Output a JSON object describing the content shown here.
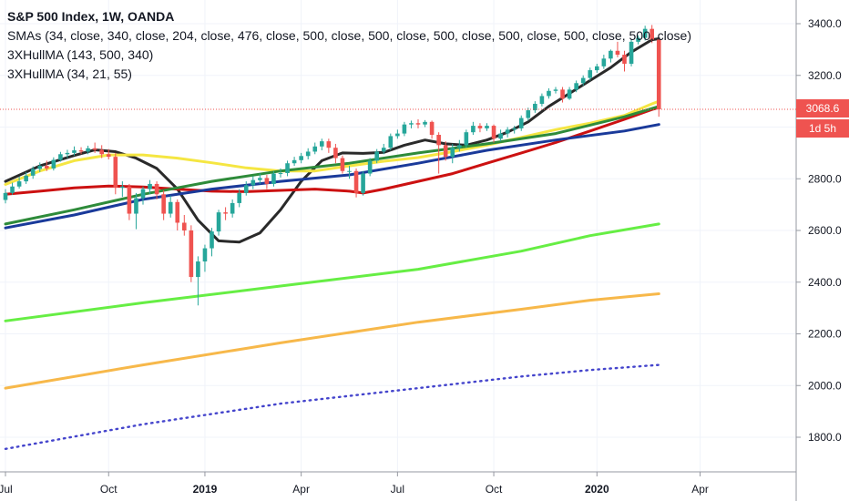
{
  "chart_data": {
    "type": "candlestick",
    "title": "S&P 500 Index, 1W, OANDA",
    "indicators": [
      "SMAs (34, close, 340, close, 204, close, 476, close, 500, close, 500, close, 500, close, 500, close, 500, close, 500, close)",
      "3XHullMA (143, 500, 340)",
      "3XHullMA (34, 21, 55)"
    ],
    "y_axis": {
      "side": "right",
      "ticks": [
        "3400.0",
        "3200.0",
        "3000.0",
        "2800.0",
        "2600.0",
        "2400.0",
        "2200.0",
        "2000.0",
        "1800.0"
      ],
      "ylim": [
        1740,
        3440
      ]
    },
    "x_axis": {
      "ticks": [
        "Jul",
        "Oct",
        "2019",
        "Apr",
        "Jul",
        "Oct",
        "2020",
        "Apr"
      ]
    },
    "grid": true,
    "last_price_label": "3068.6",
    "countdown_label": "1d 5h",
    "candles": [
      {
        "o": 2718,
        "c": 2745,
        "h": 2760,
        "l": 2705
      },
      {
        "o": 2745,
        "c": 2770,
        "h": 2785,
        "l": 2738
      },
      {
        "o": 2770,
        "c": 2790,
        "h": 2808,
        "l": 2762
      },
      {
        "o": 2790,
        "c": 2812,
        "h": 2826,
        "l": 2780
      },
      {
        "o": 2812,
        "c": 2838,
        "h": 2848,
        "l": 2800
      },
      {
        "o": 2838,
        "c": 2850,
        "h": 2863,
        "l": 2826
      },
      {
        "o": 2850,
        "c": 2840,
        "h": 2870,
        "l": 2830
      },
      {
        "o": 2840,
        "c": 2873,
        "h": 2883,
        "l": 2832
      },
      {
        "o": 2873,
        "c": 2895,
        "h": 2904,
        "l": 2866
      },
      {
        "o": 2895,
        "c": 2900,
        "h": 2912,
        "l": 2880
      },
      {
        "o": 2900,
        "c": 2910,
        "h": 2925,
        "l": 2890
      },
      {
        "o": 2910,
        "c": 2905,
        "h": 2922,
        "l": 2895
      },
      {
        "o": 2905,
        "c": 2918,
        "h": 2928,
        "l": 2895
      },
      {
        "o": 2918,
        "c": 2912,
        "h": 2940,
        "l": 2900
      },
      {
        "o": 2912,
        "c": 2895,
        "h": 2930,
        "l": 2880
      },
      {
        "o": 2895,
        "c": 2885,
        "h": 2915,
        "l": 2875
      },
      {
        "o": 2885,
        "c": 2765,
        "h": 2900,
        "l": 2740
      },
      {
        "o": 2765,
        "c": 2770,
        "h": 2790,
        "l": 2730
      },
      {
        "o": 2770,
        "c": 2665,
        "h": 2780,
        "l": 2640
      },
      {
        "o": 2665,
        "c": 2725,
        "h": 2745,
        "l": 2605
      },
      {
        "o": 2725,
        "c": 2760,
        "h": 2770,
        "l": 2700
      },
      {
        "o": 2760,
        "c": 2780,
        "h": 2795,
        "l": 2740
      },
      {
        "o": 2780,
        "c": 2740,
        "h": 2790,
        "l": 2720
      },
      {
        "o": 2740,
        "c": 2665,
        "h": 2755,
        "l": 2640
      },
      {
        "o": 2665,
        "c": 2710,
        "h": 2735,
        "l": 2650
      },
      {
        "o": 2710,
        "c": 2630,
        "h": 2720,
        "l": 2600
      },
      {
        "o": 2630,
        "c": 2600,
        "h": 2660,
        "l": 2580
      },
      {
        "o": 2600,
        "c": 2420,
        "h": 2620,
        "l": 2400
      },
      {
        "o": 2420,
        "c": 2480,
        "h": 2500,
        "l": 2310
      },
      {
        "o": 2480,
        "c": 2531,
        "h": 2545,
        "l": 2440
      },
      {
        "o": 2531,
        "c": 2596,
        "h": 2610,
        "l": 2500
      },
      {
        "o": 2596,
        "c": 2670,
        "h": 2680,
        "l": 2580
      },
      {
        "o": 2670,
        "c": 2665,
        "h": 2690,
        "l": 2640
      },
      {
        "o": 2665,
        "c": 2706,
        "h": 2720,
        "l": 2650
      },
      {
        "o": 2706,
        "c": 2745,
        "h": 2760,
        "l": 2690
      },
      {
        "o": 2745,
        "c": 2775,
        "h": 2790,
        "l": 2735
      },
      {
        "o": 2775,
        "c": 2795,
        "h": 2810,
        "l": 2760
      },
      {
        "o": 2795,
        "c": 2803,
        "h": 2820,
        "l": 2780
      },
      {
        "o": 2803,
        "c": 2780,
        "h": 2815,
        "l": 2760
      },
      {
        "o": 2780,
        "c": 2820,
        "h": 2830,
        "l": 2770
      },
      {
        "o": 2820,
        "c": 2822,
        "h": 2840,
        "l": 2805
      },
      {
        "o": 2822,
        "c": 2860,
        "h": 2870,
        "l": 2810
      },
      {
        "o": 2860,
        "c": 2872,
        "h": 2885,
        "l": 2850
      },
      {
        "o": 2872,
        "c": 2888,
        "h": 2900,
        "l": 2860
      },
      {
        "o": 2888,
        "c": 2905,
        "h": 2918,
        "l": 2875
      },
      {
        "o": 2905,
        "c": 2925,
        "h": 2940,
        "l": 2895
      },
      {
        "o": 2925,
        "c": 2945,
        "h": 2955,
        "l": 2910
      },
      {
        "o": 2945,
        "c": 2920,
        "h": 2955,
        "l": 2900
      },
      {
        "o": 2920,
        "c": 2880,
        "h": 2935,
        "l": 2860
      },
      {
        "o": 2880,
        "c": 2830,
        "h": 2890,
        "l": 2820
      },
      {
        "o": 2830,
        "c": 2830,
        "h": 2850,
        "l": 2800
      },
      {
        "o": 2830,
        "c": 2745,
        "h": 2840,
        "l": 2728
      },
      {
        "o": 2745,
        "c": 2820,
        "h": 2830,
        "l": 2735
      },
      {
        "o": 2820,
        "c": 2870,
        "h": 2880,
        "l": 2810
      },
      {
        "o": 2870,
        "c": 2905,
        "h": 2915,
        "l": 2860
      },
      {
        "o": 2905,
        "c": 2920,
        "h": 2935,
        "l": 2895
      },
      {
        "o": 2920,
        "c": 2965,
        "h": 2975,
        "l": 2910
      },
      {
        "o": 2965,
        "c": 2975,
        "h": 2990,
        "l": 2955
      },
      {
        "o": 2975,
        "c": 3010,
        "h": 3020,
        "l": 2965
      },
      {
        "o": 3010,
        "c": 3015,
        "h": 3025,
        "l": 2995
      },
      {
        "o": 3015,
        "c": 3010,
        "h": 3030,
        "l": 2995
      },
      {
        "o": 3010,
        "c": 3020,
        "h": 3027,
        "l": 3000
      },
      {
        "o": 3020,
        "c": 2970,
        "h": 3025,
        "l": 2955
      },
      {
        "o": 2970,
        "c": 2930,
        "h": 2980,
        "l": 2820
      },
      {
        "o": 2930,
        "c": 2885,
        "h": 2945,
        "l": 2870
      },
      {
        "o": 2885,
        "c": 2920,
        "h": 2935,
        "l": 2860
      },
      {
        "o": 2920,
        "c": 2930,
        "h": 2950,
        "l": 2905
      },
      {
        "o": 2930,
        "c": 2980,
        "h": 2990,
        "l": 2920
      },
      {
        "o": 2980,
        "c": 3005,
        "h": 3020,
        "l": 2970
      },
      {
        "o": 3005,
        "c": 2995,
        "h": 3015,
        "l": 2980
      },
      {
        "o": 2995,
        "c": 3005,
        "h": 3015,
        "l": 2985
      },
      {
        "o": 3005,
        "c": 2955,
        "h": 3010,
        "l": 2940
      },
      {
        "o": 2955,
        "c": 2975,
        "h": 2990,
        "l": 2945
      },
      {
        "o": 2975,
        "c": 2990,
        "h": 3000,
        "l": 2960
      },
      {
        "o": 2990,
        "c": 2995,
        "h": 3005,
        "l": 2975
      },
      {
        "o": 2995,
        "c": 3035,
        "h": 3045,
        "l": 2985
      },
      {
        "o": 3035,
        "c": 3065,
        "h": 3075,
        "l": 3025
      },
      {
        "o": 3065,
        "c": 3090,
        "h": 3100,
        "l": 3055
      },
      {
        "o": 3090,
        "c": 3120,
        "h": 3130,
        "l": 3080
      },
      {
        "o": 3120,
        "c": 3140,
        "h": 3150,
        "l": 3110
      },
      {
        "o": 3140,
        "c": 3145,
        "h": 3155,
        "l": 3130
      },
      {
        "o": 3145,
        "c": 3110,
        "h": 3155,
        "l": 3095
      },
      {
        "o": 3110,
        "c": 3145,
        "h": 3155,
        "l": 3105
      },
      {
        "o": 3145,
        "c": 3170,
        "h": 3180,
        "l": 3135
      },
      {
        "o": 3170,
        "c": 3190,
        "h": 3200,
        "l": 3160
      },
      {
        "o": 3190,
        "c": 3220,
        "h": 3230,
        "l": 3180
      },
      {
        "o": 3220,
        "c": 3235,
        "h": 3245,
        "l": 3210
      },
      {
        "o": 3235,
        "c": 3265,
        "h": 3280,
        "l": 3225
      },
      {
        "o": 3265,
        "c": 3295,
        "h": 3300,
        "l": 3250
      },
      {
        "o": 3295,
        "c": 3280,
        "h": 3330,
        "l": 3270
      },
      {
        "o": 3280,
        "c": 3245,
        "h": 3295,
        "l": 3215
      },
      {
        "o": 3245,
        "c": 3330,
        "h": 3340,
        "l": 3235
      },
      {
        "o": 3330,
        "c": 3345,
        "h": 3355,
        "l": 3320
      },
      {
        "o": 3345,
        "c": 3380,
        "h": 3392,
        "l": 3335
      },
      {
        "o": 3380,
        "c": 3338,
        "h": 3395,
        "l": 3325
      },
      {
        "o": 3338,
        "c": 3068.6,
        "h": 3345,
        "l": 3040
      }
    ],
    "series": [
      {
        "color": "#2a2a2a",
        "points": [
          [
            0,
            2790
          ],
          [
            5,
            2850
          ],
          [
            10,
            2890
          ],
          [
            13,
            2912
          ],
          [
            16,
            2905
          ],
          [
            19,
            2880
          ],
          [
            22,
            2840
          ],
          [
            25,
            2760
          ],
          [
            28,
            2640
          ],
          [
            31,
            2560
          ],
          [
            34,
            2555
          ],
          [
            37,
            2590
          ],
          [
            40,
            2680
          ],
          [
            43,
            2790
          ],
          [
            46,
            2870
          ],
          [
            49,
            2900
          ],
          [
            52,
            2898
          ],
          [
            55,
            2902
          ],
          [
            58,
            2930
          ],
          [
            61,
            2950
          ],
          [
            64,
            2935
          ],
          [
            67,
            2930
          ],
          [
            70,
            2950
          ],
          [
            73,
            2980
          ],
          [
            76,
            3020
          ],
          [
            79,
            3080
          ],
          [
            82,
            3130
          ],
          [
            85,
            3180
          ],
          [
            88,
            3230
          ],
          [
            91,
            3290
          ],
          [
            94,
            3338
          ],
          [
            95,
            3342
          ]
        ]
      },
      {
        "color": "#f5e642",
        "points": [
          [
            0,
            2778
          ],
          [
            5,
            2830
          ],
          [
            10,
            2870
          ],
          [
            15,
            2892
          ],
          [
            20,
            2892
          ],
          [
            25,
            2880
          ],
          [
            30,
            2862
          ],
          [
            35,
            2842
          ],
          [
            40,
            2830
          ],
          [
            45,
            2830
          ],
          [
            50,
            2850
          ],
          [
            55,
            2868
          ],
          [
            60,
            2882
          ],
          [
            65,
            2905
          ],
          [
            70,
            2930
          ],
          [
            75,
            2960
          ],
          [
            80,
            2990
          ],
          [
            85,
            3015
          ],
          [
            90,
            3045
          ],
          [
            94,
            3090
          ],
          [
            95,
            3100
          ]
        ]
      },
      {
        "color": "#cc1111",
        "points": [
          [
            0,
            2740
          ],
          [
            5,
            2752
          ],
          [
            10,
            2765
          ],
          [
            15,
            2772
          ],
          [
            20,
            2768
          ],
          [
            25,
            2760
          ],
          [
            30,
            2752
          ],
          [
            35,
            2750
          ],
          [
            40,
            2755
          ],
          [
            45,
            2760
          ],
          [
            50,
            2752
          ],
          [
            52,
            2745
          ],
          [
            55,
            2760
          ],
          [
            60,
            2790
          ],
          [
            65,
            2820
          ],
          [
            70,
            2860
          ],
          [
            75,
            2900
          ],
          [
            80,
            2940
          ],
          [
            85,
            2985
          ],
          [
            90,
            3030
          ],
          [
            94,
            3068
          ],
          [
            95,
            3075
          ]
        ]
      },
      {
        "color": "#2e8b3a",
        "points": [
          [
            0,
            2625
          ],
          [
            10,
            2680
          ],
          [
            20,
            2740
          ],
          [
            30,
            2790
          ],
          [
            40,
            2830
          ],
          [
            50,
            2860
          ],
          [
            60,
            2900
          ],
          [
            70,
            2935
          ],
          [
            80,
            2975
          ],
          [
            90,
            3040
          ],
          [
            95,
            3080
          ]
        ]
      },
      {
        "color": "#1a3a9a",
        "points": [
          [
            0,
            2610
          ],
          [
            10,
            2660
          ],
          [
            20,
            2720
          ],
          [
            30,
            2760
          ],
          [
            40,
            2790
          ],
          [
            50,
            2815
          ],
          [
            60,
            2860
          ],
          [
            70,
            2910
          ],
          [
            80,
            2950
          ],
          [
            90,
            2985
          ],
          [
            95,
            3010
          ]
        ]
      },
      {
        "color": "#66ee44",
        "points": [
          [
            0,
            2250
          ],
          [
            20,
            2320
          ],
          [
            40,
            2385
          ],
          [
            60,
            2450
          ],
          [
            75,
            2520
          ],
          [
            85,
            2580
          ],
          [
            95,
            2625
          ]
        ]
      },
      {
        "color": "#f7b84a",
        "points": [
          [
            0,
            1990
          ],
          [
            20,
            2080
          ],
          [
            40,
            2165
          ],
          [
            60,
            2245
          ],
          [
            75,
            2295
          ],
          [
            85,
            2330
          ],
          [
            95,
            2355
          ]
        ]
      },
      {
        "color": "#4444cc",
        "dotted": true,
        "points": [
          [
            0,
            1755
          ],
          [
            20,
            1850
          ],
          [
            40,
            1930
          ],
          [
            60,
            1990
          ],
          [
            75,
            2035
          ],
          [
            85,
            2060
          ],
          [
            95,
            2080
          ]
        ]
      }
    ]
  }
}
